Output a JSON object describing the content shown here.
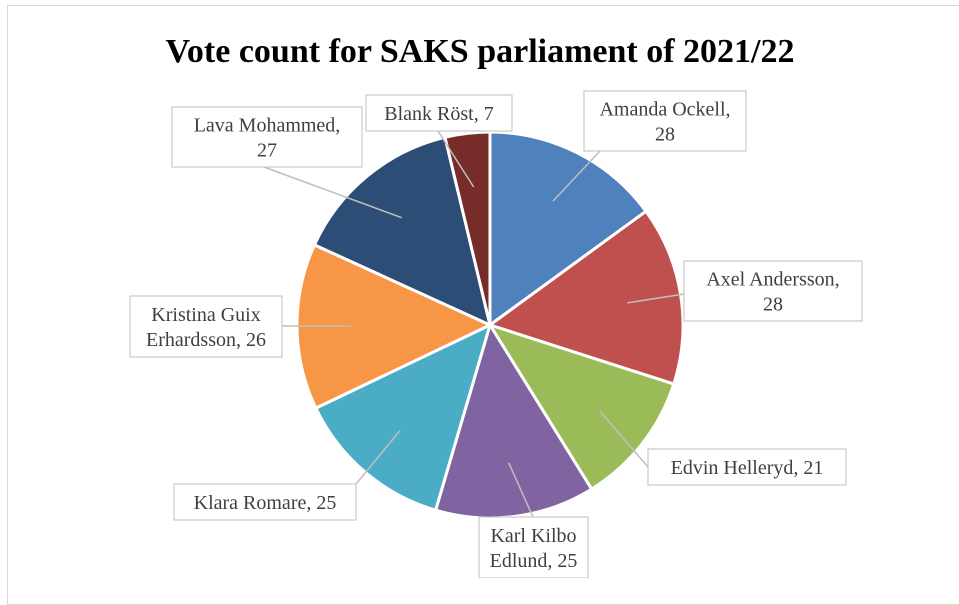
{
  "chart_data": {
    "type": "pie",
    "title": "Vote count for SAKS parliament of 2021/22",
    "slices": [
      {
        "label": "Amanda Ockell",
        "value": 28,
        "color": "#4f81bd",
        "label_lines": [
          "Amanda Ockell,",
          "28"
        ]
      },
      {
        "label": "Axel Andersson",
        "value": 28,
        "color": "#c0504d",
        "label_lines": [
          "Axel Andersson,",
          "28"
        ]
      },
      {
        "label": "Edvin Helleryd",
        "value": 21,
        "color": "#9bbb59",
        "label_lines": [
          "Edvin Helleryd, 21"
        ]
      },
      {
        "label": "Karl Kilbo Edlund",
        "value": 25,
        "color": "#8064a2",
        "label_lines": [
          "Karl Kilbo",
          "Edlund, 25"
        ]
      },
      {
        "label": "Klara Romare",
        "value": 25,
        "color": "#4bacc6",
        "label_lines": [
          "Klara Romare, 25"
        ]
      },
      {
        "label": "Kristina Guix Erhardsson",
        "value": 26,
        "color": "#f79646",
        "label_lines": [
          "Kristina Guix",
          "Erhardsson, 26"
        ]
      },
      {
        "label": "Lava Mohammed",
        "value": 27,
        "color": "#2c4d75",
        "label_lines": [
          "Lava Mohammed,",
          "27"
        ]
      },
      {
        "label": "Blank Röst",
        "value": 7,
        "color": "#772c2a",
        "label_lines": [
          "Blank Röst, 7"
        ]
      }
    ],
    "start_angle_deg": 0,
    "direction": "clockwise",
    "legend": "none",
    "data_labels": "callouts"
  }
}
